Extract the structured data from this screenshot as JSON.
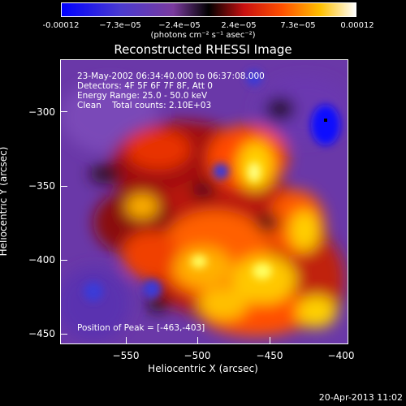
{
  "colorbar": {
    "labels": [
      "-0.00012",
      "−7.3e−05",
      "−2.4e−05",
      "2.4e−05",
      "7.3e−05",
      "0.00012"
    ],
    "units": "(photons cm⁻² s⁻¹ asec⁻²)"
  },
  "title": "Reconstructed RHESSI Image",
  "annotation": {
    "line1": "23-May-2002 06:34:40.000 to 06:37:08.000",
    "line2": "Detectors: 4F 5F 6F 7F 8F, Att 0",
    "line3": "Energy Range: 25.0 - 50.0 keV",
    "line4": "Clean    Total counts: 2.10E+03",
    "peak": "Position of Peak = [-463,-403]"
  },
  "axes": {
    "xlabel": "Heliocentric X (arcsec)",
    "ylabel": "Heliocentric Y (arcsec)",
    "x_ticks": [
      "−550",
      "−500",
      "−450",
      "−400"
    ],
    "y_ticks": [
      "−300",
      "−350",
      "−400",
      "−450"
    ]
  },
  "footer": {
    "timestamp": "20-Apr-2013 11:02"
  },
  "chart_data": {
    "type": "heatmap",
    "title": "Reconstructed RHESSI Image",
    "xlabel": "Heliocentric X (arcsec)",
    "ylabel": "Heliocentric Y (arcsec)",
    "xlim": [
      -593,
      -400
    ],
    "ylim": [
      -462,
      -268
    ],
    "clim": [
      -0.00012,
      0.00012
    ],
    "peak": [
      -463,
      -403
    ],
    "colormap": [
      "#0000ff",
      "#5a2ab8",
      "#7a3a9e",
      "#000000",
      "#c21010",
      "#ff4a00",
      "#ffb000",
      "#ffff70",
      "#ffffff"
    ]
  }
}
